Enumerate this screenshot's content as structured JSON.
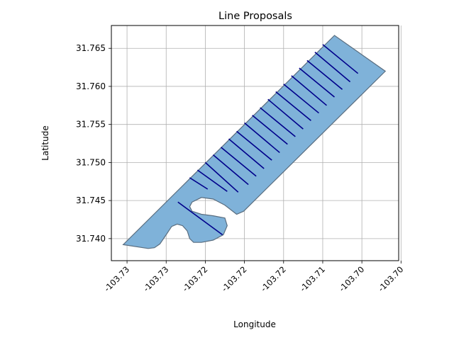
{
  "chart_data": {
    "type": "line",
    "title": "Line Proposals",
    "xlabel": "Longitude",
    "ylabel": "Latitude",
    "xlim": [
      -103.732,
      -103.6953
    ],
    "ylim": [
      31.7371,
      31.768
    ],
    "x_ticks": [
      {
        "value": -103.73,
        "label": "-103.73"
      },
      {
        "value": -103.725,
        "label": "-103.73"
      },
      {
        "value": -103.72,
        "label": "-103.72"
      },
      {
        "value": -103.715,
        "label": "-103.72"
      },
      {
        "value": -103.71,
        "label": "-103.72"
      },
      {
        "value": -103.705,
        "label": "-103.71"
      },
      {
        "value": -103.7,
        "label": "-103.70"
      },
      {
        "value": -103.695,
        "label": "-103.70"
      }
    ],
    "y_ticks": [
      {
        "value": 31.74,
        "label": "31.740"
      },
      {
        "value": 31.745,
        "label": "31.745"
      },
      {
        "value": 31.75,
        "label": "31.750"
      },
      {
        "value": 31.755,
        "label": "31.755"
      },
      {
        "value": 31.76,
        "label": "31.760"
      },
      {
        "value": 31.765,
        "label": "31.765"
      }
    ],
    "grid": true,
    "polygon": {
      "fill": "#7fb2d9",
      "edge": "#5a6e80",
      "points": [
        [
          -103.7305,
          31.7392
        ],
        [
          -103.7273,
          31.7387
        ],
        [
          -103.7265,
          31.7388
        ],
        [
          -103.7258,
          31.7393
        ],
        [
          -103.725,
          31.7405
        ],
        [
          -103.7243,
          31.7416
        ],
        [
          -103.7236,
          31.7419
        ],
        [
          -103.7229,
          31.7417
        ],
        [
          -103.7223,
          31.741
        ],
        [
          -103.722,
          31.74
        ],
        [
          -103.7215,
          31.7395
        ],
        [
          -103.7205,
          31.7395
        ],
        [
          -103.719,
          31.7398
        ],
        [
          -103.7177,
          31.7405
        ],
        [
          -103.7172,
          31.7417
        ],
        [
          -103.7175,
          31.7427
        ],
        [
          -103.719,
          31.743
        ],
        [
          -103.7205,
          31.7432
        ],
        [
          -103.7217,
          31.7436
        ],
        [
          -103.722,
          31.7442
        ],
        [
          -103.7217,
          31.7448
        ],
        [
          -103.7205,
          31.7454
        ],
        [
          -103.719,
          31.7452
        ],
        [
          -103.7175,
          31.7444
        ],
        [
          -103.716,
          31.7432
        ],
        [
          -103.7151,
          31.7436
        ],
        [
          -103.697,
          31.762
        ],
        [
          -103.7035,
          31.7667
        ],
        [
          -103.7305,
          31.7392
        ]
      ]
    },
    "series": [
      {
        "color": "#00008b",
        "segments": [
          [
            [
              -103.7235,
              31.7448
            ],
            [
              -103.7178,
              31.7405
            ]
          ],
          [
            [
              -103.722,
              31.748
            ],
            [
              -103.7197,
              31.7465
            ]
          ],
          [
            [
              -103.721,
              31.749
            ],
            [
              -103.7172,
              31.7462
            ]
          ],
          [
            [
              -103.72,
              31.75
            ],
            [
              -103.7158,
              31.7461
            ]
          ],
          [
            [
              -103.719,
              31.751
            ],
            [
              -103.7145,
              31.7471
            ]
          ],
          [
            [
              -103.718,
              31.752
            ],
            [
              -103.7135,
              31.7482
            ]
          ],
          [
            [
              -103.717,
              31.7531
            ],
            [
              -103.7125,
              31.7492
            ]
          ],
          [
            [
              -103.716,
              31.7541
            ],
            [
              -103.7115,
              31.7503
            ]
          ],
          [
            [
              -103.715,
              31.7552
            ],
            [
              -103.7105,
              31.7513
            ]
          ],
          [
            [
              -103.714,
              31.7562
            ],
            [
              -103.7095,
              31.7524
            ]
          ],
          [
            [
              -103.713,
              31.7572
            ],
            [
              -103.7085,
              31.7534
            ]
          ],
          [
            [
              -103.712,
              31.7583
            ],
            [
              -103.7075,
              31.7544
            ]
          ],
          [
            [
              -103.711,
              31.7593
            ],
            [
              -103.7065,
              31.7555
            ]
          ],
          [
            [
              -103.71,
              31.7603
            ],
            [
              -103.7055,
              31.7565
            ]
          ],
          [
            [
              -103.709,
              31.7614
            ],
            [
              -103.7045,
              31.7575
            ]
          ],
          [
            [
              -103.708,
              31.7624
            ],
            [
              -103.7035,
              31.7586
            ]
          ],
          [
            [
              -103.707,
              31.7634
            ],
            [
              -103.7025,
              31.7596
            ]
          ],
          [
            [
              -103.706,
              31.7645
            ],
            [
              -103.7015,
              31.7606
            ]
          ],
          [
            [
              -103.705,
              31.7655
            ],
            [
              -103.7005,
              31.7617
            ]
          ]
        ]
      }
    ]
  }
}
